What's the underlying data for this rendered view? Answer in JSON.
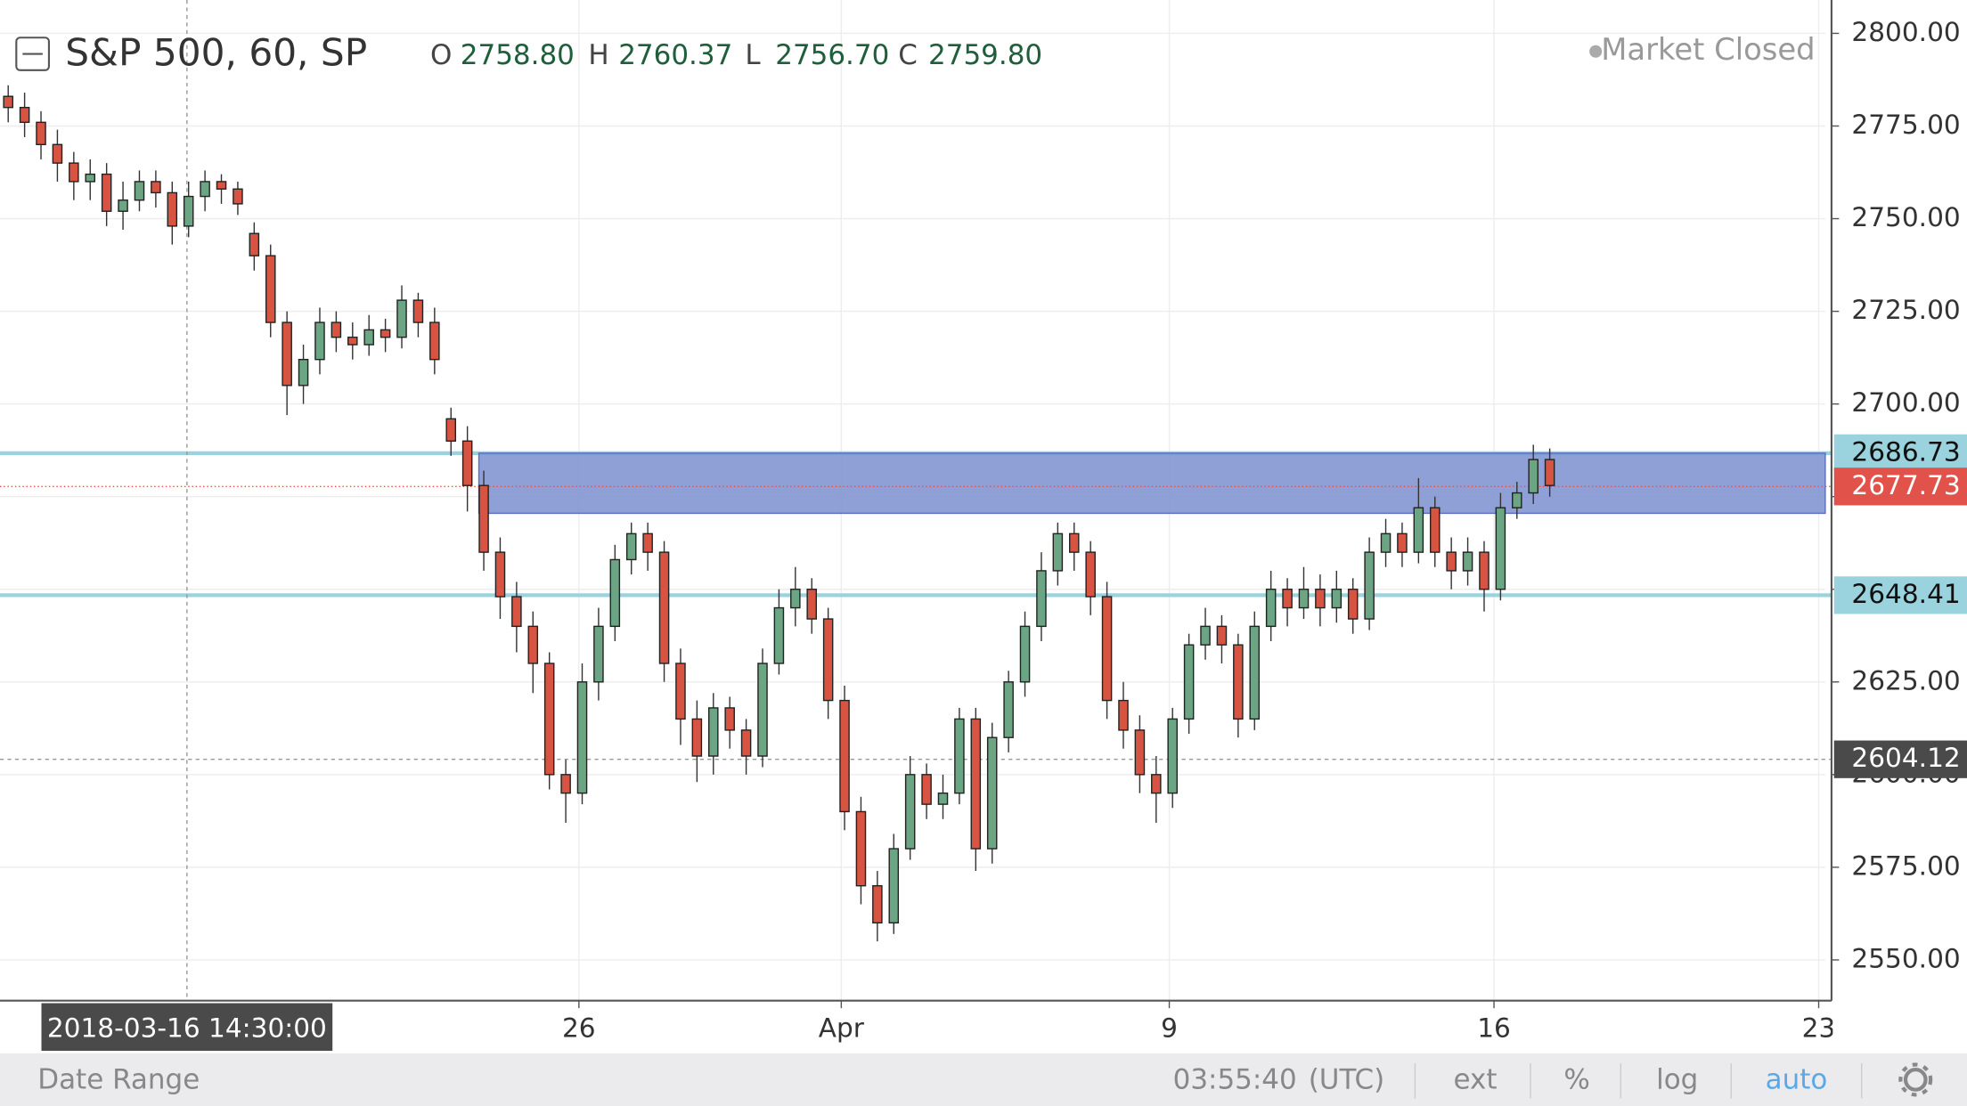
{
  "chart_data": {
    "type": "candlestick",
    "title": "S&P 500, 60, SP",
    "ohlc_legend": [
      {
        "key": "O",
        "value": "2758.80"
      },
      {
        "key": "H",
        "value": "2760.37"
      },
      {
        "key": "L",
        "value": "2756.70"
      },
      {
        "key": "C",
        "value": "2759.80"
      }
    ],
    "status": "Market Closed",
    "up_color": "#6ba583",
    "down_color": "#d75442",
    "open": [
      2783,
      2780,
      2776,
      2770,
      2765,
      2760,
      2762,
      2752,
      2755,
      2760,
      2757,
      2748,
      2756,
      2760,
      2758,
      2746,
      2740,
      2722,
      2705,
      2712,
      2722,
      2718,
      2716,
      2720,
      2718,
      2728,
      2722,
      2696,
      2690,
      2678,
      2660,
      2648,
      2640,
      2630,
      2600,
      2595,
      2625,
      2640,
      2658,
      2665,
      2660,
      2630,
      2615,
      2605,
      2618,
      2612,
      2605,
      2630,
      2645,
      2650,
      2642,
      2620,
      2590,
      2570,
      2560,
      2580,
      2600,
      2592,
      2595,
      2615,
      2580,
      2610,
      2625,
      2640,
      2655,
      2665,
      2660,
      2648,
      2620,
      2612,
      2600,
      2595,
      2615,
      2635,
      2640,
      2635,
      2615,
      2640,
      2650,
      2645,
      2650,
      2645,
      2650,
      2642,
      2660,
      2665,
      2660,
      2672,
      2660,
      2655,
      2660,
      2650,
      2672,
      2676,
      2685
    ],
    "high": [
      2786,
      2784,
      2779,
      2774,
      2768,
      2766,
      2765,
      2760,
      2763,
      2763,
      2760,
      2760,
      2763,
      2762,
      2760,
      2749,
      2743,
      2725,
      2716,
      2726,
      2725,
      2722,
      2724,
      2723,
      2732,
      2730,
      2726,
      2699,
      2694,
      2682,
      2664,
      2652,
      2644,
      2633,
      2604,
      2630,
      2645,
      2662,
      2668,
      2668,
      2663,
      2634,
      2620,
      2622,
      2621,
      2615,
      2634,
      2650,
      2656,
      2653,
      2645,
      2624,
      2594,
      2574,
      2584,
      2605,
      2603,
      2600,
      2618,
      2618,
      2614,
      2628,
      2644,
      2660,
      2668,
      2668,
      2663,
      2652,
      2625,
      2616,
      2605,
      2618,
      2638,
      2645,
      2643,
      2638,
      2644,
      2655,
      2653,
      2656,
      2654,
      2655,
      2653,
      2664,
      2669,
      2668,
      2680,
      2675,
      2664,
      2664,
      2663,
      2676,
      2679,
      2689,
      2688
    ],
    "low": [
      2776,
      2772,
      2766,
      2760,
      2755,
      2755,
      2748,
      2747,
      2752,
      2753,
      2743,
      2745,
      2752,
      2754,
      2751,
      2736,
      2718,
      2697,
      2700,
      2708,
      2714,
      2712,
      2713,
      2714,
      2715,
      2718,
      2708,
      2686,
      2671,
      2655,
      2642,
      2633,
      2622,
      2596,
      2587,
      2592,
      2620,
      2636,
      2654,
      2655,
      2625,
      2608,
      2598,
      2600,
      2607,
      2600,
      2602,
      2627,
      2640,
      2638,
      2615,
      2585,
      2565,
      2555,
      2557,
      2577,
      2588,
      2588,
      2592,
      2574,
      2576,
      2606,
      2621,
      2636,
      2651,
      2655,
      2643,
      2615,
      2607,
      2595,
      2587,
      2591,
      2611,
      2631,
      2630,
      2610,
      2612,
      2636,
      2640,
      2642,
      2640,
      2641,
      2638,
      2639,
      2656,
      2656,
      2657,
      2656,
      2650,
      2651,
      2644,
      2647,
      2669,
      2673,
      2675
    ],
    "close": [
      2780,
      2776,
      2770,
      2765,
      2760,
      2762,
      2752,
      2755,
      2760,
      2757,
      2748,
      2756,
      2760,
      2758,
      2754,
      2740,
      2722,
      2705,
      2712,
      2722,
      2718,
      2716,
      2720,
      2718,
      2728,
      2722,
      2712,
      2690,
      2678,
      2660,
      2648,
      2640,
      2630,
      2600,
      2595,
      2625,
      2640,
      2658,
      2665,
      2660,
      2630,
      2615,
      2605,
      2618,
      2612,
      2605,
      2630,
      2645,
      2650,
      2642,
      2620,
      2590,
      2570,
      2560,
      2580,
      2600,
      2592,
      2595,
      2615,
      2580,
      2610,
      2625,
      2640,
      2655,
      2665,
      2660,
      2648,
      2620,
      2612,
      2600,
      2595,
      2615,
      2635,
      2640,
      2635,
      2615,
      2640,
      2650,
      2645,
      2650,
      2645,
      2650,
      2642,
      2660,
      2665,
      2660,
      2672,
      2660,
      2655,
      2660,
      2650,
      2672,
      2676,
      2685,
      2678
    ],
    "xlim": [
      0,
      111.3
    ],
    "xticks": [
      {
        "value": 35.3,
        "label": "26"
      },
      {
        "value": 51.3,
        "label": "Apr"
      },
      {
        "value": 71.3,
        "label": "9"
      },
      {
        "value": 91.1,
        "label": "16"
      },
      {
        "value": 110.9,
        "label": "23"
      }
    ],
    "ylim": [
      2539,
      2809
    ],
    "yticks": [
      {
        "value": 2550,
        "label": "2550.00"
      },
      {
        "value": 2575,
        "label": "2575.00"
      },
      {
        "value": 2600,
        "label": "2600.00"
      },
      {
        "value": 2625,
        "label": "2625.00"
      },
      {
        "value": 2650,
        "label": "2650.00"
      },
      {
        "value": 2675,
        "label": "2675.00"
      },
      {
        "value": 2700,
        "label": "2700.00"
      },
      {
        "value": 2725,
        "label": "2725.00"
      },
      {
        "value": 2750,
        "label": "2750.00"
      },
      {
        "value": 2775,
        "label": "2775.00"
      },
      {
        "value": 2800,
        "label": "2800.00"
      }
    ],
    "grid": true,
    "levels": [
      2686.73,
      2648.41
    ],
    "level_color": "#9ad3de",
    "zone": {
      "low": 2670.5,
      "high": 2686.73,
      "start": 29.2,
      "color": "#7b8fd0"
    },
    "last_price": 2677.73,
    "last_price_color": "#e0524a",
    "crosshair": {
      "x": 11.4,
      "y": 2604.12,
      "label": "2018-03-16 14:30:00"
    }
  },
  "toolbar": {
    "date_range": "Date Range",
    "clock": "03:55:40",
    "timezone": "(UTC)",
    "buttons": [
      "ext",
      "%",
      "log",
      "auto"
    ]
  }
}
